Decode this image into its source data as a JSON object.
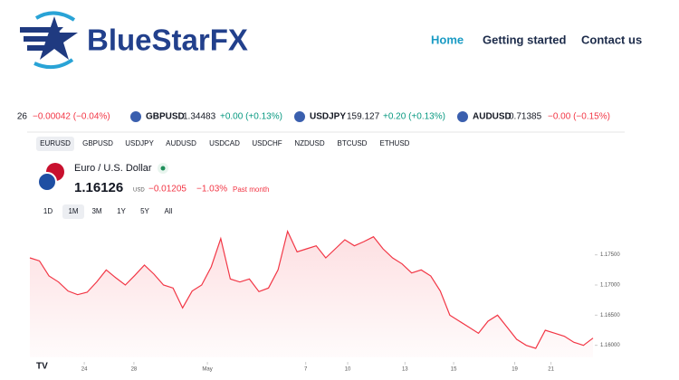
{
  "header": {
    "logo": "BlueStarFX",
    "nav": [
      "Home",
      "Getting started",
      "Contact us"
    ]
  },
  "ticker": [
    {
      "price": "26",
      "change": "−0.00042 (−0.04%)"
    },
    {
      "symbol": "GBPUSD",
      "price": "1.34483",
      "change": "+0.00 (+0.13%)"
    },
    {
      "symbol": "USDJPY",
      "price": "159.127",
      "change": "+0.20 (+0.13%)"
    },
    {
      "symbol": "AUDUSD",
      "price": "0.71385",
      "change": "−0.00 (−0.15%)"
    }
  ],
  "tabs": [
    "EURUSD",
    "GBPUSD",
    "USDJPY",
    "AUDUSD",
    "USDCAD",
    "USDCHF",
    "NZDUSD",
    "BTCUSD",
    "ETHUSD"
  ],
  "quote": {
    "name": "Euro / U.S. Dollar",
    "price": "1.16126",
    "currency": "USD",
    "change": "−0.01205",
    "change_pct": "−1.03%",
    "period": "Past month"
  },
  "ranges": [
    "1D",
    "1M",
    "3M",
    "1Y",
    "5Y",
    "All"
  ],
  "chart_data": {
    "type": "area",
    "color": "#f23645",
    "x": [
      0,
      1,
      2,
      3,
      4,
      5,
      6,
      7,
      8,
      9,
      10,
      11,
      12,
      13,
      14,
      15,
      16,
      17,
      18,
      19,
      20,
      21,
      22,
      23,
      24,
      25,
      26,
      27,
      28,
      29,
      30,
      31,
      32,
      33,
      34,
      35,
      36,
      37,
      38,
      39,
      40,
      41,
      42,
      43,
      44,
      45,
      46,
      47,
      48,
      49,
      50,
      51,
      52,
      53,
      54,
      55,
      56,
      57,
      58,
      59
    ],
    "values": [
      1.1745,
      1.174,
      1.1715,
      1.1705,
      1.169,
      1.1684,
      1.1688,
      1.1705,
      1.1725,
      1.1712,
      1.17,
      1.1716,
      1.1733,
      1.1718,
      1.17,
      1.1695,
      1.1662,
      1.169,
      1.17,
      1.173,
      1.1777,
      1.171,
      1.1705,
      1.171,
      1.1689,
      1.1695,
      1.1725,
      1.1789,
      1.1755,
      1.176,
      1.1765,
      1.1745,
      1.176,
      1.1775,
      1.1765,
      1.1772,
      1.178,
      1.176,
      1.1745,
      1.1735,
      1.172,
      1.1725,
      1.1715,
      1.169,
      1.165,
      1.164,
      1.163,
      1.162,
      1.164,
      1.165,
      1.163,
      1.161,
      1.16,
      1.1595,
      1.1625,
      1.162,
      1.1615,
      1.1605,
      1.16,
      1.1612
    ],
    "xlim": [
      0,
      59
    ],
    "xticks": [
      {
        "value": 5.7,
        "label": "24"
      },
      {
        "value": 10.9,
        "label": "28"
      },
      {
        "value": 18.6,
        "label": "May"
      },
      {
        "value": 28.9,
        "label": "7"
      },
      {
        "value": 33.3,
        "label": "10"
      },
      {
        "value": 39.3,
        "label": "13"
      },
      {
        "value": 44.4,
        "label": "15"
      },
      {
        "value": 50.8,
        "label": "19"
      },
      {
        "value": 54.6,
        "label": "21"
      }
    ],
    "ylim": [
      1.158,
      1.179
    ],
    "yticks": [
      {
        "value": 1.16,
        "label": "1.16000"
      },
      {
        "value": 1.165,
        "label": "1.16500"
      },
      {
        "value": 1.17,
        "label": "1.17000"
      },
      {
        "value": 1.175,
        "label": "1.17500"
      }
    ]
  }
}
